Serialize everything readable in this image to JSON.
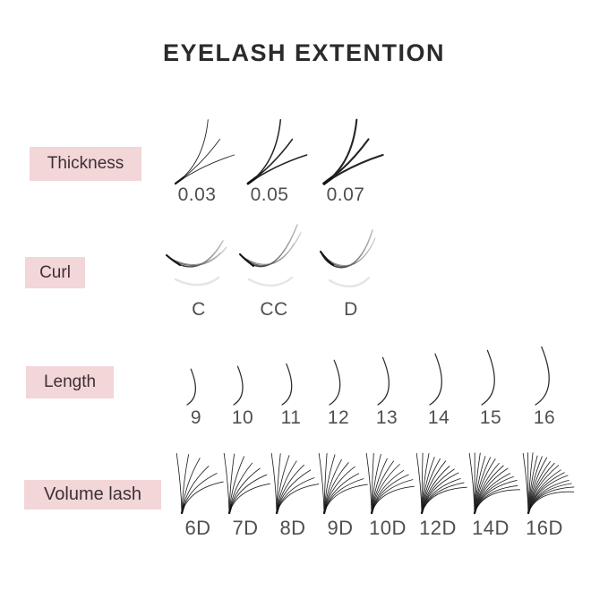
{
  "title": "EYELASH EXTENTION",
  "colors": {
    "background": "#ffffff",
    "highlight_pink": "#f3d6d8",
    "title_text": "#2b2b2b",
    "row_label_text": "#3b3134",
    "value_text": "#4f4f4f",
    "lash_stroke": "#242424"
  },
  "rows": [
    {
      "name": "thickness",
      "label": "Thickness",
      "items": [
        {
          "label": "0.03"
        },
        {
          "label": "0.05"
        },
        {
          "label": "0.07"
        }
      ]
    },
    {
      "name": "curl",
      "label": "Curl",
      "items": [
        {
          "label": "C"
        },
        {
          "label": "CC"
        },
        {
          "label": "D"
        }
      ]
    },
    {
      "name": "length",
      "label": "Length",
      "items": [
        {
          "label": "9"
        },
        {
          "label": "10"
        },
        {
          "label": "11"
        },
        {
          "label": "12"
        },
        {
          "label": "13"
        },
        {
          "label": "14"
        },
        {
          "label": "15"
        },
        {
          "label": "16"
        }
      ]
    },
    {
      "name": "volume",
      "label": "Volume lash",
      "items": [
        {
          "label": "6D",
          "strands": 6
        },
        {
          "label": "7D",
          "strands": 7
        },
        {
          "label": "8D",
          "strands": 8
        },
        {
          "label": "9D",
          "strands": 9
        },
        {
          "label": "10D",
          "strands": 10
        },
        {
          "label": "12D",
          "strands": 12
        },
        {
          "label": "14D",
          "strands": 14
        },
        {
          "label": "16D",
          "strands": 16
        }
      ]
    }
  ]
}
